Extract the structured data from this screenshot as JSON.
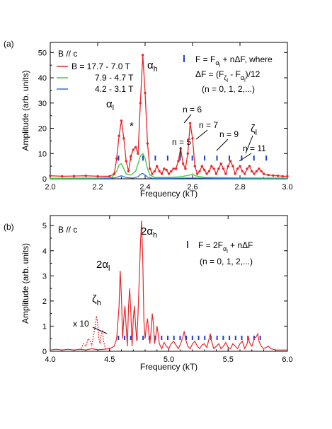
{
  "chart_data": [
    {
      "panel_label": "(a)",
      "type": "line",
      "title_left": "B // c",
      "xlabel": "Frequency (kT)",
      "ylabel": "Amplitude (arb. units)",
      "xlim": [
        2.0,
        3.0
      ],
      "ylim": [
        0,
        54
      ],
      "x_ticks": [
        "2.0",
        "2.2",
        "2.4",
        "2.6",
        "2.8",
        "3.0"
      ],
      "y_ticks": [
        "0",
        "10",
        "20",
        "30",
        "40",
        "50"
      ],
      "legend": {
        "placement": "top-left",
        "entries": [
          {
            "label": "B = 17.7 - 7.0 T",
            "color": "#e8262a"
          },
          {
            "label": "7.9 - 4.7 T",
            "color": "#33cc33"
          },
          {
            "label": "4.2 - 3.1 T",
            "color": "#2f6fd6"
          }
        ]
      },
      "formula_lines": [
        "F = F",
        " + nΔF, where",
        "ΔF = (F",
        " - F",
        ")/12",
        "(n = 0, 1, 2,...)"
      ],
      "formula_subscripts": [
        "α",
        "l",
        "ζ",
        "l",
        "α",
        "l"
      ],
      "formula_marker_color": "#1f3fcc",
      "annotations": {
        "alpha_l": [
          "α",
          "l"
        ],
        "alpha_h": [
          "α",
          "h"
        ],
        "zeta_l": [
          "ζ",
          "l"
        ],
        "star": "*",
        "n_labels": [
          "n = 5",
          "n = 6",
          "n = 7",
          "n = 9",
          "n = 11"
        ]
      },
      "marker_x": [
        2.288,
        2.339,
        2.391,
        2.443,
        2.495,
        2.547,
        2.599,
        2.651,
        2.703,
        2.755,
        2.807,
        2.859,
        2.911
      ],
      "series": [
        {
          "name": "B = 17.7 - 7.0 T",
          "color": "#e8262a",
          "x": [
            2.0,
            2.05,
            2.1,
            2.15,
            2.2,
            2.25,
            2.27,
            2.28,
            2.29,
            2.3,
            2.31,
            2.32,
            2.33,
            2.34,
            2.35,
            2.36,
            2.37,
            2.38,
            2.39,
            2.4,
            2.41,
            2.42,
            2.43,
            2.44,
            2.45,
            2.46,
            2.47,
            2.48,
            2.49,
            2.5,
            2.51,
            2.52,
            2.53,
            2.54,
            2.55,
            2.56,
            2.57,
            2.58,
            2.59,
            2.6,
            2.61,
            2.62,
            2.63,
            2.64,
            2.65,
            2.66,
            2.67,
            2.68,
            2.69,
            2.7,
            2.71,
            2.72,
            2.73,
            2.74,
            2.75,
            2.76,
            2.77,
            2.78,
            2.79,
            2.8,
            2.81,
            2.82,
            2.83,
            2.84,
            2.85,
            2.86,
            2.87,
            2.88,
            2.89,
            2.9,
            2.92,
            2.94,
            2.96,
            2.98,
            3.0
          ],
          "y": [
            1.2,
            1.0,
            1.1,
            1.2,
            1.0,
            1.0,
            2,
            8,
            17,
            23,
            16,
            7,
            3,
            9,
            11.5,
            12.5,
            10,
            30,
            49,
            34,
            14,
            4,
            2,
            3,
            5,
            3,
            2,
            4,
            3.5,
            2,
            3,
            4,
            4,
            7,
            12,
            6,
            4,
            10,
            22,
            16,
            5,
            2,
            3,
            5,
            3.5,
            2,
            3,
            5,
            4,
            2,
            4,
            6,
            4,
            2,
            5,
            7,
            5,
            2,
            4,
            5,
            3,
            2,
            4,
            5,
            3,
            2,
            3,
            4,
            3,
            2,
            1.5,
            1.3,
            1.2,
            1.0,
            1.0
          ]
        },
        {
          "name": "7.9 - 4.7 T",
          "color": "#33cc33",
          "x": [
            2.0,
            2.2,
            2.26,
            2.28,
            2.29,
            2.3,
            2.31,
            2.32,
            2.34,
            2.36,
            2.37,
            2.38,
            2.39,
            2.4,
            2.41,
            2.42,
            2.44,
            2.5,
            2.55,
            2.59,
            2.6,
            2.61,
            2.65,
            2.7,
            2.8,
            2.9,
            3.0
          ],
          "y": [
            0.2,
            0.3,
            0.6,
            3,
            5.5,
            6,
            4,
            2,
            1.5,
            3,
            6,
            9,
            10,
            8,
            4,
            1.5,
            0.6,
            0.6,
            0.8,
            1.5,
            2.0,
            1.2,
            0.6,
            0.5,
            0.4,
            0.3,
            0.3
          ]
        },
        {
          "name": "4.2 - 3.1 T",
          "color": "#2f6fd6",
          "x": [
            2.0,
            2.25,
            2.28,
            2.3,
            2.32,
            2.35,
            2.37,
            2.38,
            2.39,
            2.4,
            2.41,
            2.43,
            2.5,
            2.6,
            2.7,
            2.8,
            2.9,
            3.0
          ],
          "y": [
            0.1,
            0.1,
            0.6,
            1.2,
            0.5,
            0.3,
            0.8,
            1.8,
            2.1,
            1.5,
            0.7,
            0.2,
            0.2,
            0.3,
            0.2,
            0.2,
            0.2,
            0.2
          ]
        }
      ]
    },
    {
      "panel_label": "(b)",
      "type": "line",
      "title_left": "B // c",
      "xlabel": "Frequency (kT)",
      "ylabel": "Amplitude (arb. units)",
      "xlim": [
        4.0,
        6.0
      ],
      "ylim": [
        0,
        5.4
      ],
      "x_ticks": [
        "4.0",
        "4.5",
        "5.0",
        "5.5",
        "6.0"
      ],
      "y_ticks": [
        "0",
        "1",
        "2",
        "3",
        "4",
        "5"
      ],
      "formula_lines": [
        "F = 2F",
        " + nΔF",
        "(n = 0, 1, 2,...)"
      ],
      "formula_subscripts": [
        "α",
        "l"
      ],
      "formula_marker_color": "#1f3fcc",
      "annotations": {
        "two_alpha_l": [
          "2α",
          "l"
        ],
        "two_alpha_h": [
          "2α",
          "h"
        ],
        "zeta_h": [
          "ζ",
          "h"
        ],
        "times_ten": "x 10"
      },
      "marker_x": [
        4.575,
        4.627,
        4.679,
        4.731,
        4.783,
        4.835,
        4.887,
        4.939,
        4.991,
        5.043,
        5.095,
        5.147,
        5.199,
        5.251,
        5.303,
        5.355,
        5.407,
        5.459,
        5.511,
        5.563,
        5.615,
        5.667,
        5.719,
        5.771
      ],
      "series": [
        {
          "name": "solid",
          "color": "#e8262a",
          "dashed": false,
          "x": [
            4.0,
            4.05,
            4.1,
            4.15,
            4.2,
            4.25,
            4.3,
            4.35,
            4.4,
            4.45,
            4.5,
            4.54,
            4.56,
            4.58,
            4.59,
            4.6,
            4.61,
            4.62,
            4.63,
            4.64,
            4.65,
            4.66,
            4.67,
            4.68,
            4.69,
            4.7,
            4.71,
            4.72,
            4.73,
            4.74,
            4.75,
            4.76,
            4.77,
            4.78,
            4.79,
            4.8,
            4.81,
            4.82,
            4.83,
            4.84,
            4.85,
            4.86,
            4.87,
            4.88,
            4.89,
            4.9,
            4.91,
            4.92,
            4.94,
            4.96,
            4.98,
            5.0,
            5.02,
            5.04,
            5.06,
            5.08,
            5.1,
            5.12,
            5.13,
            5.14,
            5.16,
            5.18,
            5.2,
            5.22,
            5.24,
            5.26,
            5.28,
            5.3,
            5.32,
            5.34,
            5.35,
            5.36,
            5.38,
            5.4,
            5.42,
            5.44,
            5.46,
            5.48,
            5.5,
            5.52,
            5.54,
            5.56,
            5.58,
            5.6,
            5.62,
            5.64,
            5.66,
            5.67,
            5.68,
            5.7,
            5.72,
            5.74,
            5.75,
            5.76,
            5.78,
            5.8,
            5.82,
            5.84,
            5.86,
            5.88,
            5.9,
            5.95,
            6.0
          ],
          "y": [
            0.05,
            0.08,
            0.05,
            0.08,
            0.05,
            0.08,
            0.05,
            0.1,
            0.06,
            0.08,
            0.1,
            0.2,
            0.5,
            1.8,
            3.2,
            2.2,
            0.5,
            1.3,
            1.8,
            1.0,
            0.2,
            1.8,
            2.5,
            1.5,
            0.2,
            1.3,
            1.8,
            1.0,
            0.4,
            1.5,
            2.8,
            4.2,
            5.2,
            3.6,
            1.2,
            0.5,
            1.0,
            1.3,
            0.8,
            0.3,
            0.8,
            1.5,
            1.1,
            0.3,
            0.6,
            1.0,
            0.7,
            0.3,
            0.1,
            0.35,
            0.2,
            0.1,
            0.3,
            0.4,
            0.25,
            0.1,
            0.3,
            0.6,
            0.8,
            0.5,
            0.2,
            0.1,
            0.3,
            0.4,
            0.2,
            0.1,
            0.25,
            0.3,
            0.15,
            0.5,
            0.7,
            0.4,
            0.1,
            0.2,
            0.3,
            0.1,
            0.2,
            0.35,
            0.15,
            0.1,
            0.3,
            0.2,
            0.1,
            0.3,
            0.4,
            0.1,
            0.3,
            0.6,
            0.35,
            0.2,
            0.5,
            0.6,
            0.7,
            0.4,
            0.2,
            0.1,
            0.15,
            0.2,
            0.1,
            0.08,
            0.05,
            0.05,
            0.05
          ]
        },
        {
          "name": "x 10",
          "color": "#e8262a",
          "dashed": true,
          "x": [
            4.26,
            4.28,
            4.3,
            4.32,
            4.34,
            4.35,
            4.36,
            4.38,
            4.39,
            4.4,
            4.41,
            4.42,
            4.43,
            4.44,
            4.45,
            4.46,
            4.47
          ],
          "y": [
            0.1,
            0.3,
            0.2,
            0.5,
            0.4,
            0.2,
            0.5,
            1.0,
            1.4,
            1.1,
            0.5,
            0.3,
            0.7,
            0.8,
            0.4,
            0.2,
            0.1
          ]
        }
      ]
    }
  ]
}
